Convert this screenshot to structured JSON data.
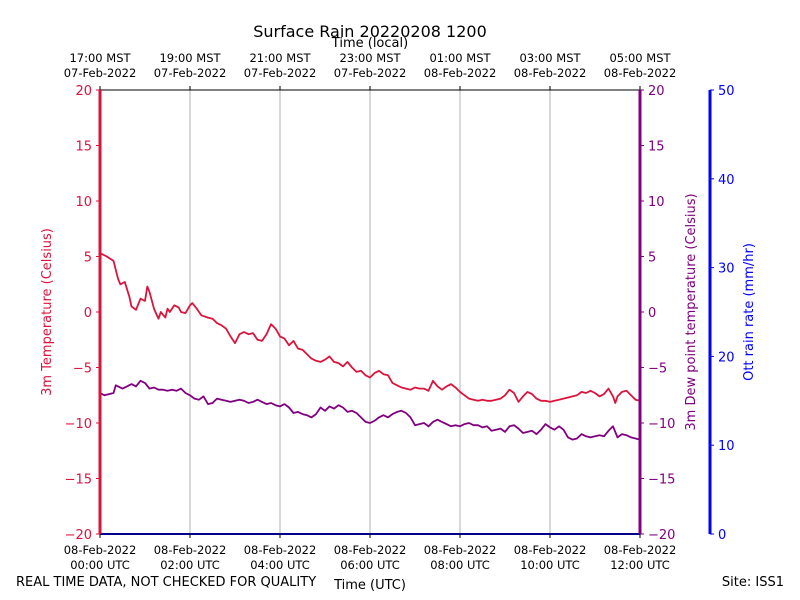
{
  "chart_data": {
    "type": "line",
    "title": "Surface Rain 20220208 1200",
    "top_axis_label": "Time (local)",
    "xlabel": "Time (UTC)",
    "ylabel_left": "3m Temperature (Celsius)",
    "ylabel_right1": "3m Dew point temperature (Celsius)",
    "ylabel_right2": "Ott rain rate (mm/hr)",
    "x_ticks_utc": [
      {
        "hour": 0,
        "line1": "08-Feb-2022",
        "line2": "00:00 UTC"
      },
      {
        "hour": 2,
        "line1": "08-Feb-2022",
        "line2": "02:00 UTC"
      },
      {
        "hour": 4,
        "line1": "08-Feb-2022",
        "line2": "04:00 UTC"
      },
      {
        "hour": 6,
        "line1": "08-Feb-2022",
        "line2": "06:00 UTC"
      },
      {
        "hour": 8,
        "line1": "08-Feb-2022",
        "line2": "08:00 UTC"
      },
      {
        "hour": 10,
        "line1": "08-Feb-2022",
        "line2": "10:00 UTC"
      },
      {
        "hour": 12,
        "line1": "08-Feb-2022",
        "line2": "12:00 UTC"
      }
    ],
    "x_ticks_local": [
      {
        "hour": 0,
        "line1": "17:00 MST",
        "line2": "07-Feb-2022"
      },
      {
        "hour": 2,
        "line1": "19:00 MST",
        "line2": "07-Feb-2022"
      },
      {
        "hour": 4,
        "line1": "21:00 MST",
        "line2": "07-Feb-2022"
      },
      {
        "hour": 6,
        "line1": "23:00 MST",
        "line2": "07-Feb-2022"
      },
      {
        "hour": 8,
        "line1": "01:00 MST",
        "line2": "08-Feb-2022"
      },
      {
        "hour": 10,
        "line1": "03:00 MST",
        "line2": "08-Feb-2022"
      },
      {
        "hour": 12,
        "line1": "05:00 MST",
        "line2": "08-Feb-2022"
      }
    ],
    "xlim": [
      0,
      12
    ],
    "ylim_temp": [
      -20,
      20
    ],
    "y_ticks_temp": [
      -20,
      -15,
      -10,
      -5,
      0,
      5,
      10,
      15,
      20
    ],
    "ylim_rain": [
      0,
      50
    ],
    "y_ticks_rain": [
      0,
      10,
      20,
      30,
      40,
      50
    ],
    "grid": "vertical",
    "colors": {
      "temperature": "#dc143c",
      "dewpoint": "#800080",
      "rain": "#0000ff",
      "grid": "#b0b0b0"
    },
    "series": [
      {
        "key": "temperature",
        "axis": "temp",
        "x": [
          0.0,
          0.15,
          0.3,
          0.4,
          0.45,
          0.55,
          0.65,
          0.7,
          0.8,
          0.9,
          1.0,
          1.05,
          1.1,
          1.2,
          1.3,
          1.35,
          1.45,
          1.5,
          1.55,
          1.65,
          1.75,
          1.8,
          1.9,
          2.0,
          2.05,
          2.15,
          2.25,
          2.4,
          2.5,
          2.6,
          2.7,
          2.8,
          2.9,
          3.0,
          3.1,
          3.2,
          3.3,
          3.4,
          3.5,
          3.6,
          3.7,
          3.8,
          3.9,
          4.0,
          4.1,
          4.2,
          4.3,
          4.4,
          4.5,
          4.6,
          4.7,
          4.8,
          4.9,
          5.0,
          5.1,
          5.2,
          5.3,
          5.4,
          5.5,
          5.6,
          5.7,
          5.8,
          5.9,
          6.0,
          6.1,
          6.2,
          6.3,
          6.4,
          6.5,
          6.6,
          6.7,
          6.8,
          6.9,
          7.0,
          7.1,
          7.2,
          7.3,
          7.4,
          7.5,
          7.6,
          7.7,
          7.8,
          7.9,
          8.0,
          8.1,
          8.2,
          8.3,
          8.4,
          8.5,
          8.6,
          8.7,
          8.8,
          8.9,
          9.0,
          9.1,
          9.2,
          9.3,
          9.4,
          9.5,
          9.6,
          9.7,
          9.8,
          9.9,
          10.0,
          10.1,
          10.2,
          10.3,
          10.4,
          10.5,
          10.6,
          10.7,
          10.8,
          10.9,
          11.0,
          11.1,
          11.2,
          11.3,
          11.4,
          11.45,
          11.5,
          11.6,
          11.7,
          11.8,
          11.9,
          12.0
        ],
        "values": [
          5.3,
          5.0,
          4.6,
          3.0,
          2.5,
          2.7,
          1.4,
          0.5,
          0.2,
          1.2,
          1.0,
          2.3,
          1.8,
          0.3,
          -0.6,
          0.0,
          -0.5,
          0.3,
          0.0,
          0.6,
          0.4,
          0.0,
          -0.1,
          0.6,
          0.8,
          0.3,
          -0.3,
          -0.5,
          -0.6,
          -1.0,
          -1.2,
          -1.5,
          -2.2,
          -2.8,
          -2.0,
          -1.8,
          -2.0,
          -1.9,
          -2.5,
          -2.6,
          -2.0,
          -1.1,
          -1.5,
          -2.2,
          -2.4,
          -3.0,
          -2.6,
          -3.3,
          -3.4,
          -3.8,
          -4.2,
          -4.4,
          -4.5,
          -4.3,
          -4.0,
          -4.5,
          -4.6,
          -4.9,
          -4.5,
          -5.0,
          -5.4,
          -5.3,
          -5.7,
          -5.9,
          -5.5,
          -5.3,
          -5.6,
          -5.7,
          -6.4,
          -6.6,
          -6.8,
          -6.9,
          -7.0,
          -6.8,
          -6.9,
          -6.9,
          -7.1,
          -6.2,
          -6.7,
          -7.0,
          -6.7,
          -6.5,
          -6.8,
          -7.2,
          -7.5,
          -7.8,
          -7.9,
          -8.0,
          -7.9,
          -8.0,
          -8.0,
          -7.9,
          -7.8,
          -7.5,
          -7.0,
          -7.3,
          -8.1,
          -7.6,
          -7.2,
          -7.4,
          -7.8,
          -8.0,
          -8.0,
          -8.1,
          -8.0,
          -7.9,
          -7.8,
          -7.7,
          -7.6,
          -7.5,
          -7.2,
          -7.3,
          -7.1,
          -7.3,
          -7.6,
          -7.4,
          -6.9,
          -7.6,
          -8.2,
          -7.6,
          -7.2,
          -7.1,
          -7.5,
          -7.9,
          -8.0
        ]
      },
      {
        "key": "dewpoint",
        "axis": "temp",
        "x": [
          0.0,
          0.1,
          0.2,
          0.3,
          0.35,
          0.4,
          0.5,
          0.6,
          0.7,
          0.8,
          0.9,
          1.0,
          1.1,
          1.2,
          1.3,
          1.4,
          1.5,
          1.6,
          1.7,
          1.8,
          1.9,
          2.0,
          2.1,
          2.2,
          2.3,
          2.4,
          2.5,
          2.6,
          2.7,
          2.8,
          2.9,
          3.0,
          3.1,
          3.2,
          3.3,
          3.4,
          3.5,
          3.6,
          3.7,
          3.8,
          3.9,
          4.0,
          4.1,
          4.2,
          4.3,
          4.4,
          4.5,
          4.6,
          4.7,
          4.8,
          4.9,
          5.0,
          5.1,
          5.2,
          5.3,
          5.4,
          5.5,
          5.6,
          5.7,
          5.8,
          5.9,
          6.0,
          6.1,
          6.2,
          6.3,
          6.4,
          6.5,
          6.6,
          6.7,
          6.8,
          6.9,
          7.0,
          7.1,
          7.2,
          7.3,
          7.4,
          7.5,
          7.6,
          7.7,
          7.8,
          7.9,
          8.0,
          8.1,
          8.2,
          8.3,
          8.4,
          8.5,
          8.6,
          8.7,
          8.8,
          8.9,
          9.0,
          9.1,
          9.2,
          9.3,
          9.4,
          9.5,
          9.6,
          9.7,
          9.8,
          9.9,
          10.0,
          10.1,
          10.2,
          10.3,
          10.4,
          10.5,
          10.6,
          10.7,
          10.8,
          10.9,
          11.0,
          11.1,
          11.2,
          11.3,
          11.4,
          11.5,
          11.6,
          11.7,
          11.8,
          11.9,
          12.0
        ],
        "values": [
          -7.3,
          -7.5,
          -7.4,
          -7.3,
          -6.6,
          -6.7,
          -6.9,
          -6.7,
          -6.5,
          -6.7,
          -6.2,
          -6.4,
          -6.9,
          -6.8,
          -7.0,
          -7.0,
          -7.1,
          -7.0,
          -7.1,
          -6.9,
          -7.3,
          -7.5,
          -7.8,
          -7.9,
          -7.6,
          -8.3,
          -8.2,
          -7.8,
          -7.9,
          -8.0,
          -8.1,
          -8.0,
          -7.9,
          -8.0,
          -8.2,
          -8.1,
          -7.9,
          -8.1,
          -8.3,
          -8.2,
          -8.4,
          -8.5,
          -8.3,
          -8.6,
          -9.1,
          -9.0,
          -9.2,
          -9.3,
          -9.5,
          -9.2,
          -8.6,
          -8.9,
          -8.5,
          -8.7,
          -8.4,
          -8.6,
          -9.0,
          -8.9,
          -9.1,
          -9.5,
          -9.9,
          -10.0,
          -9.8,
          -9.5,
          -9.3,
          -9.5,
          -9.2,
          -9.0,
          -8.9,
          -9.1,
          -9.5,
          -10.2,
          -10.1,
          -10.0,
          -10.3,
          -9.9,
          -9.7,
          -9.9,
          -10.1,
          -10.3,
          -10.2,
          -10.3,
          -10.1,
          -10.0,
          -10.2,
          -10.2,
          -10.4,
          -10.3,
          -10.7,
          -10.6,
          -10.5,
          -10.8,
          -10.3,
          -10.2,
          -10.5,
          -10.9,
          -10.8,
          -10.7,
          -11.0,
          -10.6,
          -10.1,
          -10.4,
          -10.6,
          -10.3,
          -10.6,
          -11.3,
          -11.5,
          -11.4,
          -11.0,
          -11.2,
          -11.3,
          -11.2,
          -11.1,
          -11.2,
          -10.7,
          -10.3,
          -11.3,
          -11.0,
          -11.1,
          -11.3,
          -11.4,
          -11.5
        ]
      }
    ],
    "footer_left": "REAL TIME DATA, NOT CHECKED FOR QUALITY",
    "footer_right": "Site: ISS1"
  }
}
